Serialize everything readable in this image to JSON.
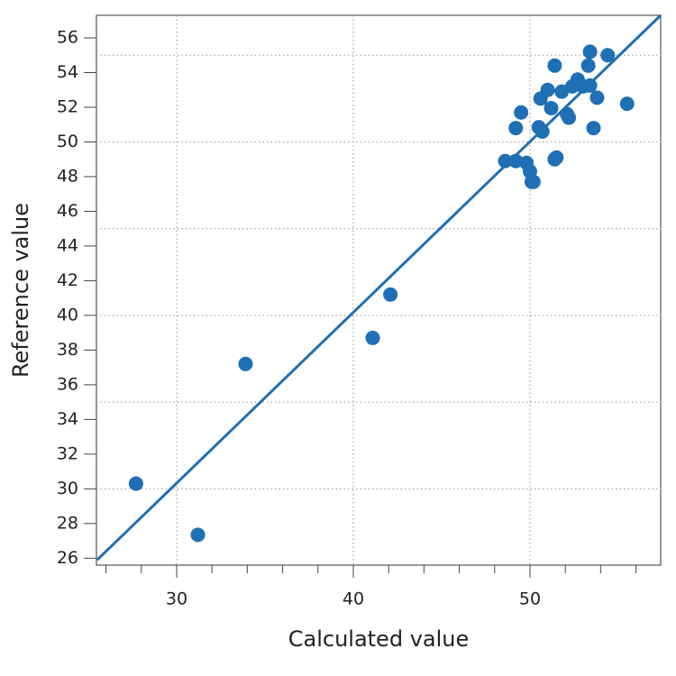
{
  "chart_data": {
    "type": "scatter",
    "x_label": "Calculated value",
    "y_label": "Reference value",
    "x": [
      27.7,
      31.2,
      33.9,
      41.1,
      42.1,
      48.6,
      49.2,
      49.8,
      50.0,
      50.1,
      50.2,
      51.4,
      51.5,
      49.2,
      49.5,
      50.5,
      50.7,
      50.6,
      51.0,
      51.2,
      51.4,
      51.8,
      52.1,
      52.2,
      52.4,
      52.7,
      53.0,
      53.3,
      53.4,
      53.4,
      53.8,
      53.6,
      54.4,
      55.5
    ],
    "values": [
      30.3,
      27.35,
      37.2,
      38.7,
      41.2,
      48.9,
      48.9,
      48.8,
      48.3,
      47.7,
      47.7,
      49.0,
      49.1,
      50.8,
      51.7,
      50.85,
      50.6,
      52.5,
      53.0,
      51.95,
      54.4,
      52.9,
      51.6,
      51.4,
      53.2,
      53.6,
      53.2,
      54.4,
      55.2,
      53.25,
      52.55,
      50.8,
      55.0,
      52.2
    ],
    "color": "#1f6fb5",
    "fit_line": {
      "x": [
        25.5,
        57.4
      ],
      "y": [
        25.9,
        57.3
      ]
    },
    "xlim": [
      25.46,
      57.4
    ],
    "ylim": [
      25.6,
      57.3
    ],
    "xticks": [
      30,
      40,
      50
    ],
    "xminor_ticks": [
      26,
      28,
      32,
      34,
      36,
      38,
      42,
      44,
      46,
      48,
      52,
      54,
      56
    ],
    "yticks": [
      26,
      28,
      30,
      32,
      34,
      36,
      38,
      40,
      42,
      44,
      46,
      48,
      50,
      52,
      54,
      56
    ],
    "grid_x": [
      30,
      40,
      50
    ],
    "grid_y": [
      30,
      35,
      40,
      45,
      50,
      55
    ]
  }
}
